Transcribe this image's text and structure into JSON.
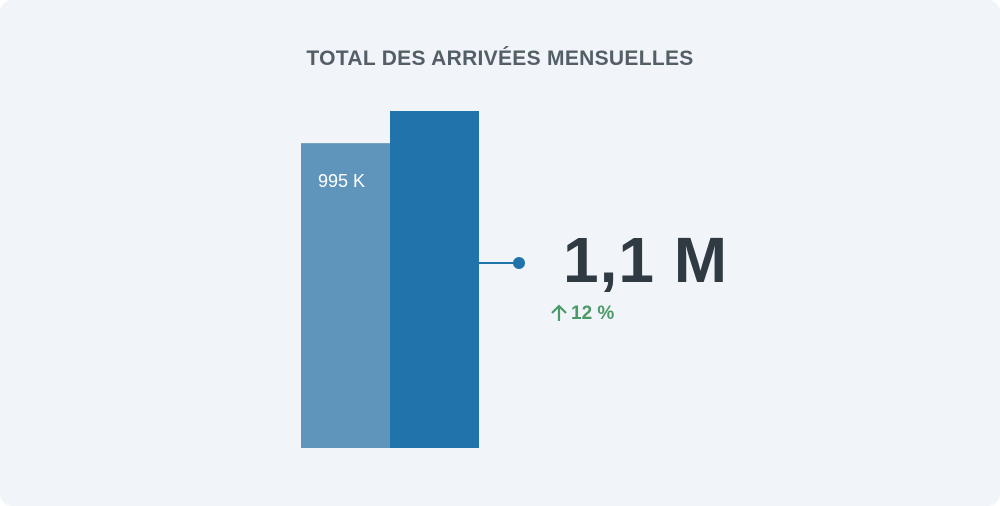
{
  "title": "TOTAL DES ARRIVÉES MENSUELLES",
  "kpi": {
    "value": "1,1 M",
    "change": "12 %",
    "change_direction": "up",
    "change_icon": "arrow-up-icon",
    "change_color": "#4a9a68"
  },
  "chart_data": {
    "type": "bar",
    "title": "TOTAL DES ARRIVÉES MENSUELLES",
    "series": [
      {
        "values": [
          995000,
          1100000
        ]
      }
    ],
    "data_labels": [
      "995 K",
      "1,1 M"
    ],
    "colors": [
      "#5f94bb",
      "#2174ab"
    ],
    "ylim": [
      0,
      1100000
    ],
    "grid": false,
    "legend": "none"
  }
}
